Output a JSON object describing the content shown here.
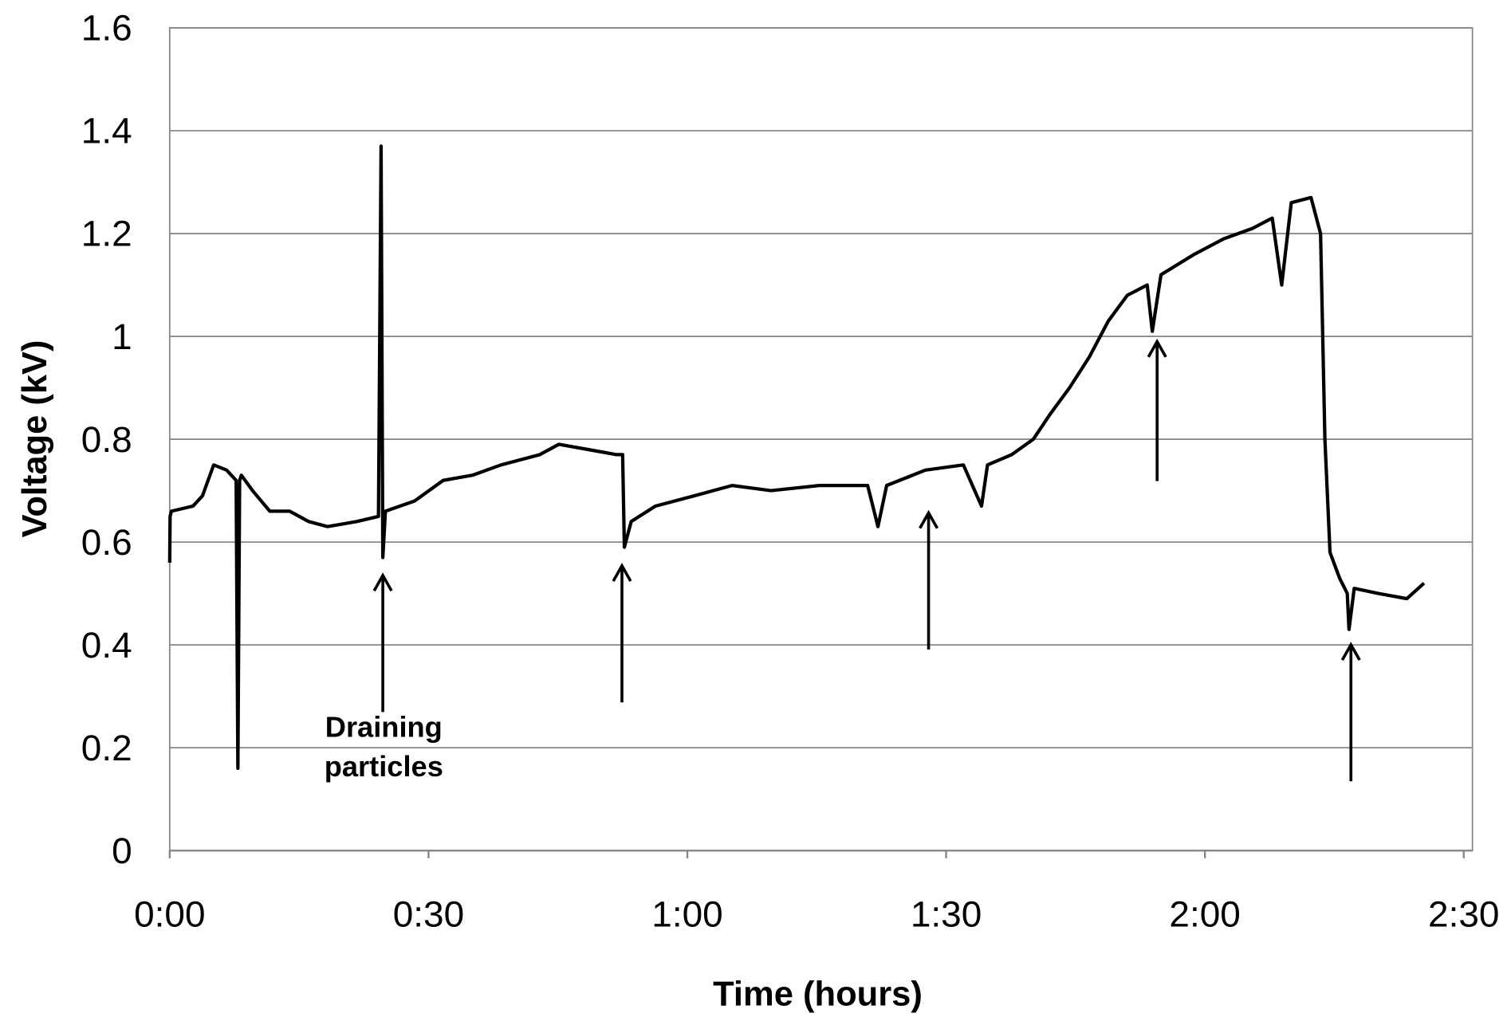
{
  "chart_data": {
    "type": "line",
    "xlabel": "Time (hours)",
    "ylabel": "Voltage (kV)",
    "annotation_lines": [
      "Draining",
      "particles"
    ],
    "xlim": [
      0,
      150
    ],
    "ylim": [
      0,
      1.6
    ],
    "xticks": [
      {
        "value": 0,
        "label": "0:00"
      },
      {
        "value": 30,
        "label": "0:30"
      },
      {
        "value": 60,
        "label": "1:00"
      },
      {
        "value": 90,
        "label": "1:30"
      },
      {
        "value": 120,
        "label": "2:00"
      },
      {
        "value": 150,
        "label": "2:30"
      }
    ],
    "yticks": [
      0,
      0.2,
      0.4,
      0.6,
      0.8,
      1,
      1.2,
      1.4,
      1.6
    ],
    "grid": true,
    "series": [
      {
        "color": "#000000",
        "x": [
          0,
          0.05,
          0.2,
          2.7,
          3.8,
          5.1,
          6.6,
          7.7,
          7.9,
          8.1,
          8.3,
          9.6,
          11.6,
          13.9,
          16.1,
          18.3,
          21.7,
          24.2,
          24.5,
          24.7,
          25.0,
          28.4,
          31.7,
          35.1,
          38.4,
          42.9,
          45.1,
          48.5,
          51.8,
          52.5,
          52.7,
          53.5,
          56.3,
          60.8,
          65.2,
          69.7,
          75.3,
          80.9,
          82.1,
          83.1,
          87.6,
          92.0,
          94.1,
          94.8,
          97.6,
          100.1,
          102.1,
          104.3,
          106.6,
          108.8,
          111.0,
          113.3,
          113.9,
          114.9,
          118.8,
          122.2,
          125.5,
          127.8,
          128.9,
          130.0,
          132.3,
          133.4,
          133.9,
          134.5,
          135.6,
          136.5,
          136.7,
          137.3,
          140.1,
          143.4,
          145.4
        ],
        "values": [
          0.56,
          0.65,
          0.66,
          0.67,
          0.69,
          0.75,
          0.74,
          0.72,
          0.16,
          0.72,
          0.73,
          0.7,
          0.66,
          0.66,
          0.64,
          0.63,
          0.64,
          0.65,
          1.37,
          0.57,
          0.66,
          0.68,
          0.72,
          0.73,
          0.75,
          0.77,
          0.79,
          0.78,
          0.77,
          0.77,
          0.59,
          0.64,
          0.67,
          0.69,
          0.71,
          0.7,
          0.71,
          0.71,
          0.63,
          0.71,
          0.74,
          0.75,
          0.67,
          0.75,
          0.77,
          0.8,
          0.85,
          0.9,
          0.96,
          1.03,
          1.08,
          1.1,
          1.01,
          1.12,
          1.16,
          1.19,
          1.21,
          1.23,
          1.1,
          1.26,
          1.27,
          1.2,
          0.8,
          0.58,
          0.53,
          0.5,
          0.43,
          0.51,
          0.5,
          0.49,
          0.52
        ]
      }
    ]
  }
}
